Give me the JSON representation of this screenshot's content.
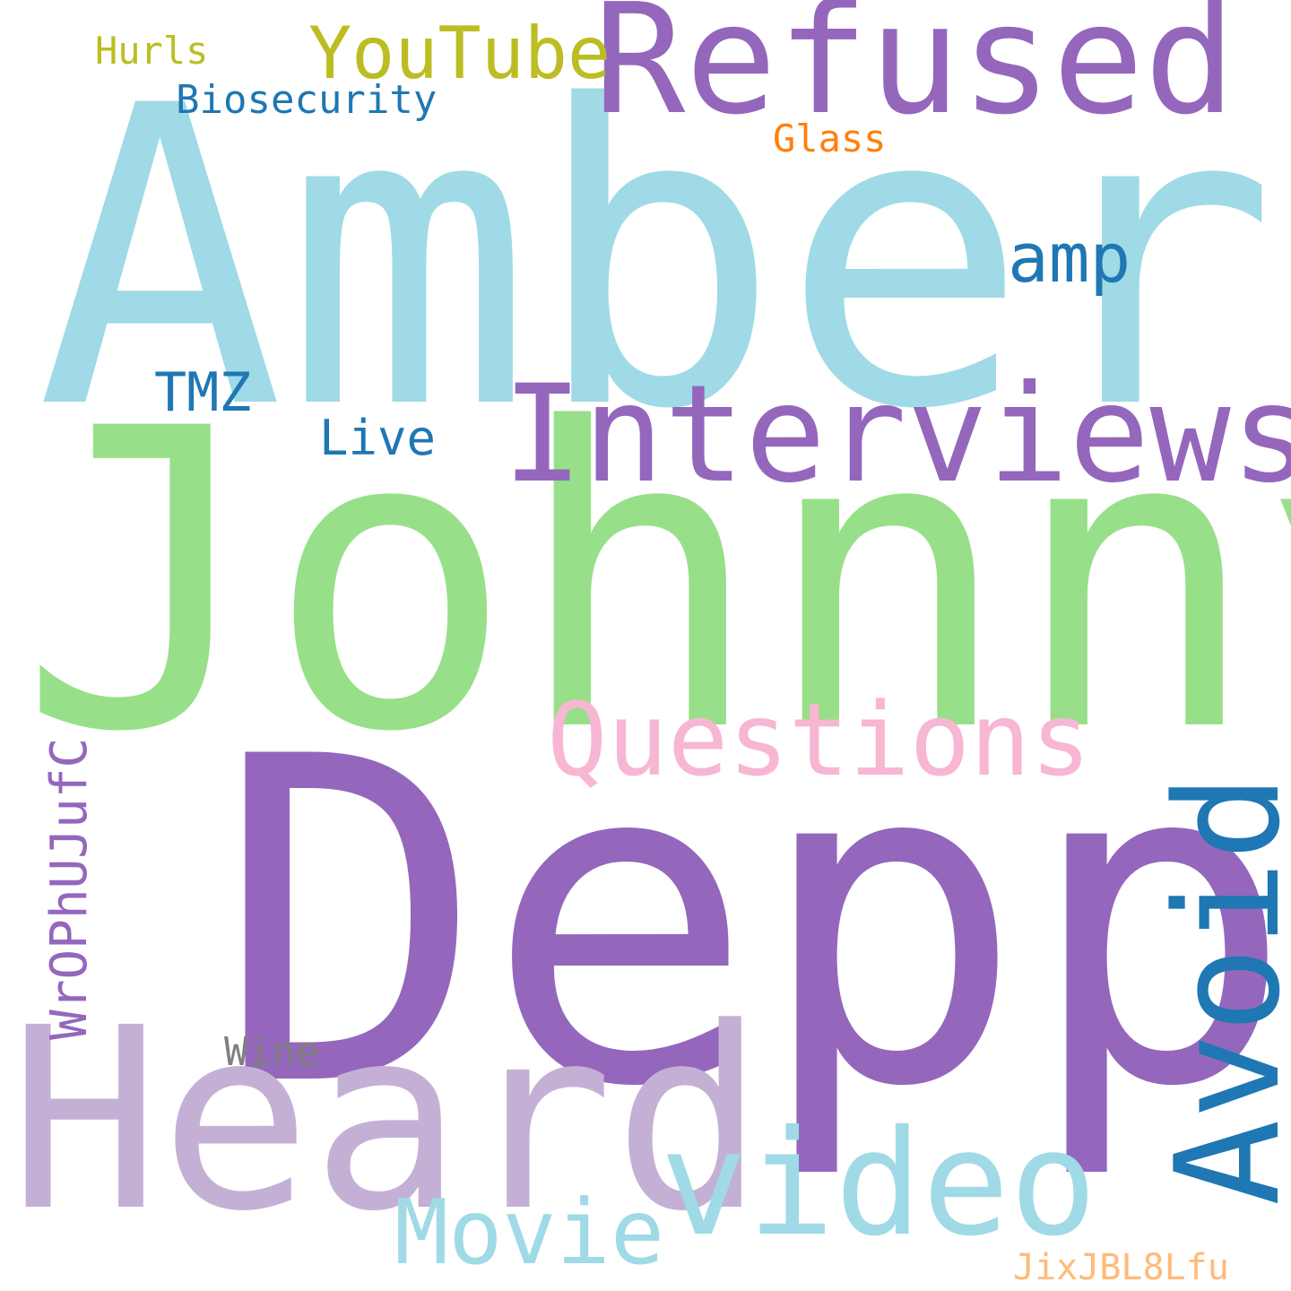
{
  "words": {
    "amber": {
      "text": "Amber",
      "color": "#9fdae6"
    },
    "johnny": {
      "text": "Johnny",
      "color": "#98df8a"
    },
    "depp": {
      "text": "Depp",
      "color": "#9467bd"
    },
    "heard": {
      "text": "Heard",
      "color": "#c5b0d5"
    },
    "refused": {
      "text": "Refused",
      "color": "#9467bd"
    },
    "interviews": {
      "text": "Interviews",
      "color": "#9467bd"
    },
    "questions": {
      "text": "Questions",
      "color": "#f7b6d2"
    },
    "avoid": {
      "text": "Avoid",
      "color": "#1f77b4"
    },
    "video": {
      "text": "video",
      "color": "#9fdae6"
    },
    "movie": {
      "text": "Movie",
      "color": "#9fdae6"
    },
    "youtube": {
      "text": "YouTube",
      "color": "#bcbd22"
    },
    "amp": {
      "text": "amp",
      "color": "#1f77b4"
    },
    "tmz": {
      "text": "TMZ",
      "color": "#1f77b4"
    },
    "live": {
      "text": "Live",
      "color": "#1f77b4"
    },
    "biosecurity": {
      "text": "Biosecurity",
      "color": "#1f77b4"
    },
    "hurls": {
      "text": "Hurls",
      "color": "#bcbd22"
    },
    "glass": {
      "text": "Glass",
      "color": "#ff7f0e"
    },
    "wine": {
      "text": "Wine",
      "color": "#7f7f7f"
    },
    "wrophujufc": {
      "text": "WrOPhUJufC",
      "color": "#9467bd"
    },
    "jixjbl8lfu": {
      "text": "JixJBL8Lfu",
      "color": "#ffbb78"
    }
  }
}
